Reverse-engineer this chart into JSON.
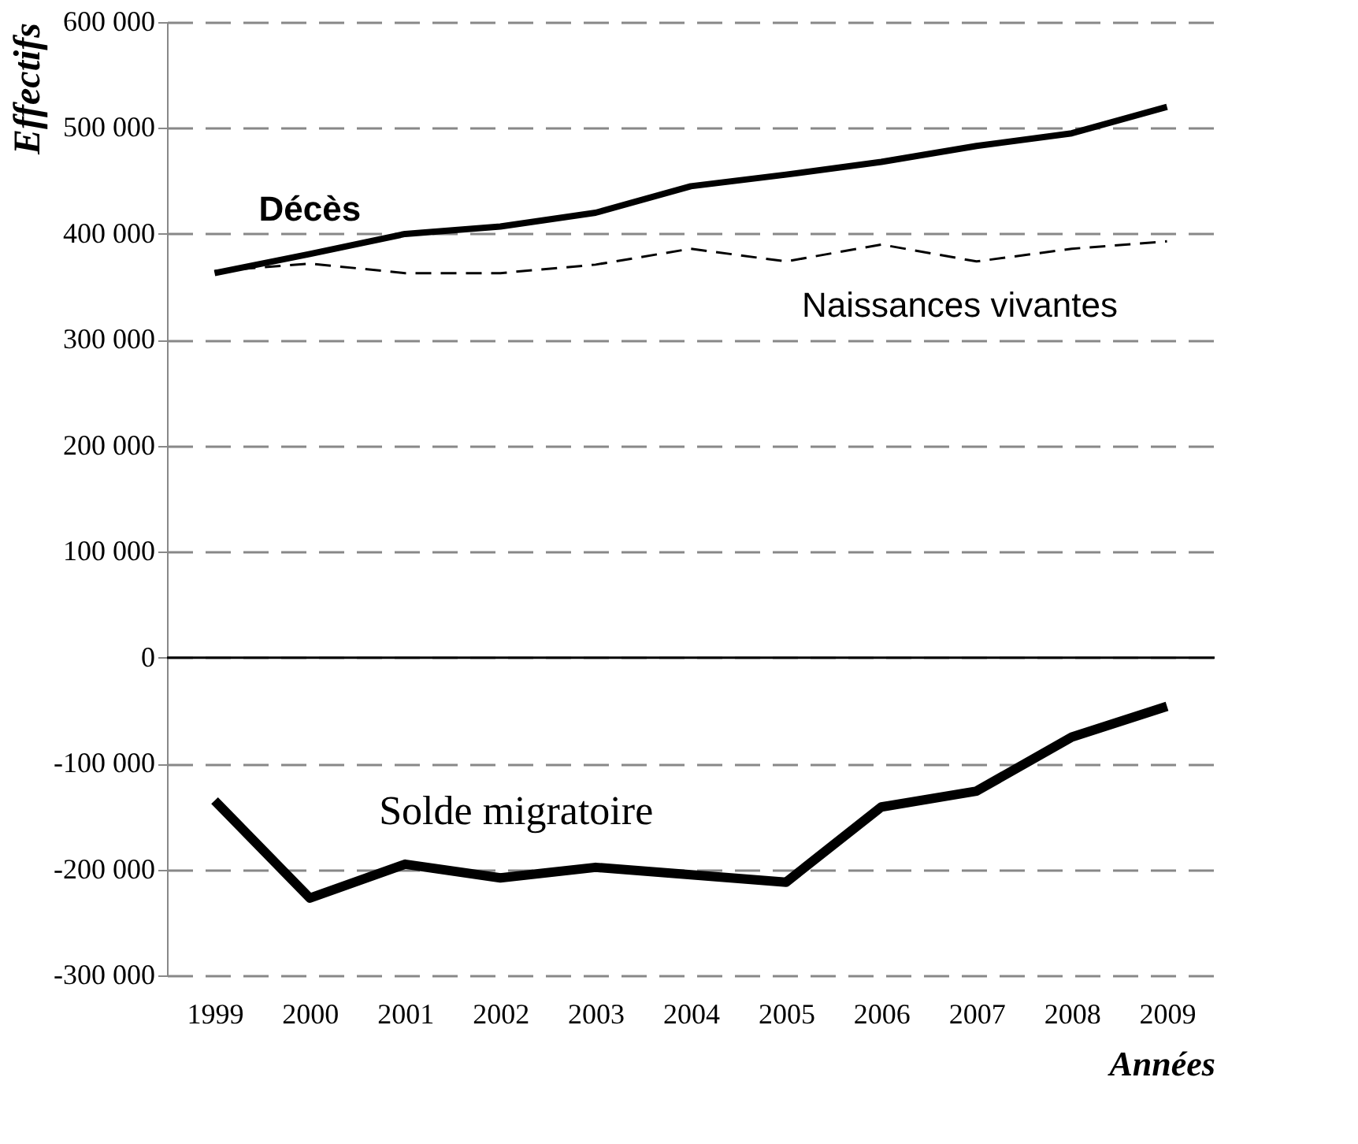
{
  "chart_data": {
    "type": "line",
    "ylabel": "Effectifs",
    "xlabel": "Années",
    "categories": [
      "1999",
      "2000",
      "2001",
      "2002",
      "2003",
      "2004",
      "2005",
      "2006",
      "2007",
      "2008",
      "2009"
    ],
    "series": [
      {
        "name": "Décès",
        "color": "#000000",
        "line_style": "solid",
        "values": [
          363000,
          381000,
          400000,
          407000,
          420000,
          445000,
          456000,
          468000,
          483000,
          495000,
          520000
        ]
      },
      {
        "name": "Naissances vivantes",
        "color": "#000000",
        "line_style": "dashed",
        "values": [
          365000,
          372000,
          363000,
          363000,
          371000,
          386000,
          374000,
          390000,
          374000,
          386000,
          393000
        ]
      },
      {
        "name": "Solde migratoire",
        "color": "#000000",
        "line_style": "solid",
        "values": [
          -135000,
          -227000,
          -195000,
          -208000,
          -198000,
          -205000,
          -212000,
          -141000,
          -126000,
          -75000,
          -46000
        ]
      }
    ],
    "ylim": [
      -300000,
      600000
    ],
    "yticks": [
      {
        "value": -300000,
        "label": "-300 000"
      },
      {
        "value": -200000,
        "label": "-200 000"
      },
      {
        "value": -100000,
        "label": "-100 000"
      },
      {
        "value": 0,
        "label": "0"
      },
      {
        "value": 100000,
        "label": "100 000"
      },
      {
        "value": 200000,
        "label": "200 000"
      },
      {
        "value": 300000,
        "label": "300 000"
      },
      {
        "value": 400000,
        "label": "400 000"
      },
      {
        "value": 500000,
        "label": "500 000"
      },
      {
        "value": 600000,
        "label": "600 000"
      }
    ],
    "ref_lines": [
      {
        "axis": "y",
        "value": 0,
        "color": "#000000",
        "line_style": "solid"
      }
    ],
    "grid": "y",
    "marker": "none"
  }
}
